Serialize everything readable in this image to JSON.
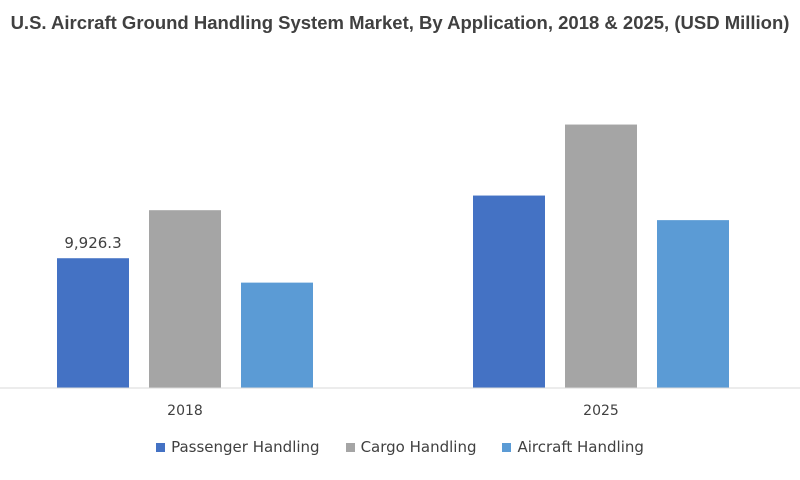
{
  "chart_data": {
    "type": "bar",
    "title": "U.S. Aircraft Ground Handling System Market, By Application, 2018 & 2025, (USD Million)",
    "xlabel": "",
    "ylabel": "",
    "categories": [
      "2018",
      "2025"
    ],
    "series": [
      {
        "name": "Passenger Handling",
        "color": "#4472C4",
        "values": [
          9926.3,
          14720
        ]
      },
      {
        "name": "Cargo Handling",
        "color": "#A5A5A5",
        "values": [
          13600,
          20150
        ]
      },
      {
        "name": "Aircraft Handling",
        "color": "#5B9BD5",
        "values": [
          8060,
          12840
        ]
      }
    ],
    "data_labels": [
      {
        "series": 0,
        "category": 0,
        "text": "9,926.3"
      }
    ],
    "ylim": [
      0,
      27000
    ],
    "grid": false,
    "legend_position": "bottom"
  }
}
